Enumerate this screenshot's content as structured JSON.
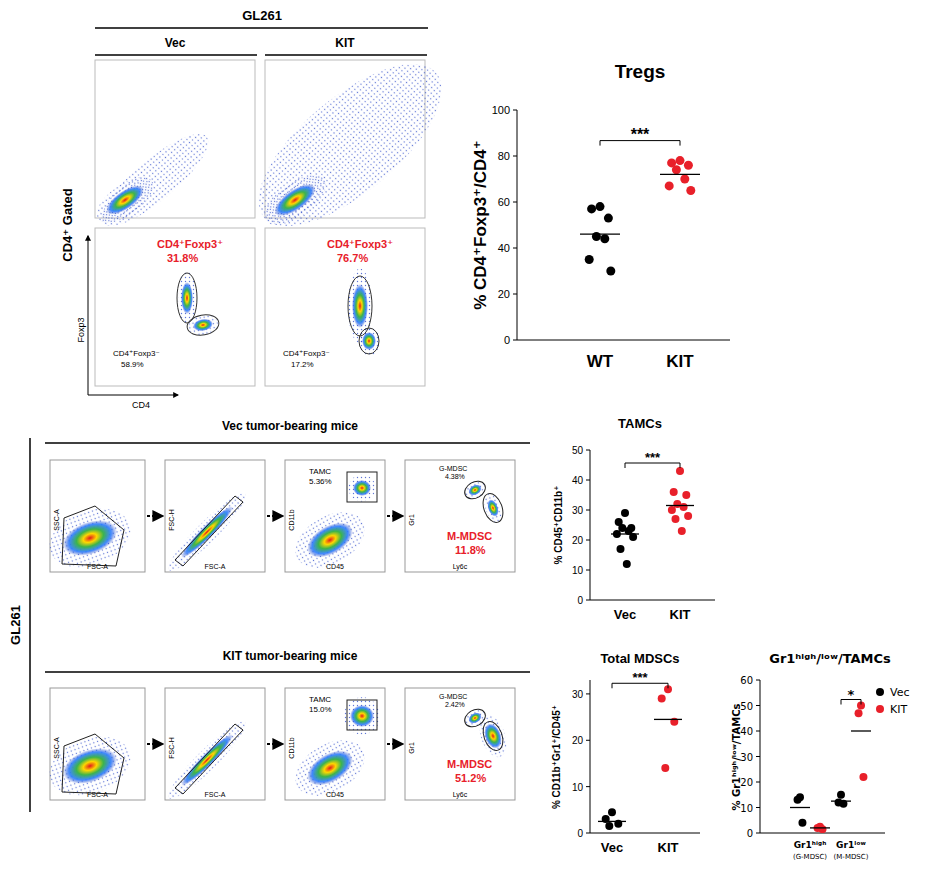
{
  "treg_flow": {
    "title": "GL261",
    "columns": [
      "Vec",
      "KIT"
    ],
    "gate_label": "CD4⁺ Gated",
    "x_label": "CD4",
    "y_label": "Foxp3",
    "gates": [
      [
        {
          "name": "CD4⁺Foxp3⁺",
          "value": "31.8%"
        },
        {
          "name": "CD4⁺Foxp3⁻",
          "value": "58.9%"
        }
      ],
      [
        {
          "name": "CD4⁺Foxp3⁺",
          "value": "76.7%"
        },
        {
          "name": "CD4⁺Foxp3⁻",
          "value": "17.2%"
        }
      ]
    ]
  },
  "myeloid_flow": {
    "title": "GL261",
    "rows": [
      {
        "title": "Vec tumor-bearing  mice",
        "tamc": "5.36%",
        "g_mdsc": "4.38%",
        "m_mdsc": "11.8%"
      },
      {
        "title": "KIT tumor-bearing  mice",
        "tamc": "15.0%",
        "g_mdsc": "2.42%",
        "m_mdsc": "51.2%"
      }
    ],
    "gate_names": {
      "tamc": "TAMC",
      "g_mdsc": "G-MDSC",
      "m_mdsc": "M-MDSC"
    },
    "axes": [
      [
        "FSC-A",
        "SSC-A"
      ],
      [
        "FSC-A",
        "FSC-H"
      ],
      [
        "CD45",
        "CD11b"
      ],
      [
        "Ly6c",
        "Gr1"
      ]
    ]
  },
  "chart_data": [
    {
      "type": "strip",
      "title": "Tregs",
      "y_label": "% CD4⁺Foxp3⁺/CD4⁺",
      "categories": [
        "WT",
        "KIT"
      ],
      "values": [
        [
          58,
          57,
          53,
          45,
          44,
          35,
          30
        ],
        [
          78,
          77,
          76,
          74,
          70,
          67,
          65
        ]
      ],
      "means": [
        46,
        72
      ],
      "colors": [
        "#000000",
        "#e8202a"
      ],
      "ylim": [
        0,
        100
      ],
      "yticks": [
        0,
        20,
        40,
        60,
        80,
        100
      ],
      "annotations": [
        {
          "text": "***"
        }
      ]
    },
    {
      "type": "strip",
      "title": "TAMCs",
      "y_label": "% CD45⁺CD11b⁺",
      "categories": [
        "Vec",
        "KIT"
      ],
      "values": [
        [
          29,
          26,
          24,
          24,
          23,
          22,
          21,
          17,
          12
        ],
        [
          43,
          36,
          35,
          32,
          31,
          30,
          28,
          27,
          23
        ]
      ],
      "means": [
        22,
        31.5
      ],
      "colors": [
        "#000000",
        "#e8202a"
      ],
      "ylim": [
        0,
        50
      ],
      "yticks": [
        0,
        10,
        20,
        30,
        40,
        50
      ],
      "annotations": [
        {
          "text": "***"
        }
      ]
    },
    {
      "type": "strip",
      "title": "Total MDSCs",
      "y_label": "% CD11b⁺Gr1⁺/CD45⁺",
      "categories": [
        "Vec",
        "KIT"
      ],
      "values": [
        [
          4.5,
          3,
          2,
          1.5
        ],
        [
          31,
          29,
          24,
          14
        ]
      ],
      "means": [
        2.5,
        24.5
      ],
      "colors": [
        "#000000",
        "#e8202a"
      ],
      "ylim": [
        0,
        33
      ],
      "yticks": [
        0,
        10,
        20,
        30
      ],
      "annotations": [
        {
          "text": "***"
        }
      ]
    },
    {
      "type": "strip",
      "title": "Gr1ʰⁱᵍʰ/ˡᵒʷ/TAMCs",
      "y_label": "% Gr1ʰⁱᵍʰ/ˡᵒʷ/TAMCs",
      "categories": [
        "Gr1ʰⁱᵍʰ",
        "Gr1ˡᵒʷ"
      ],
      "category_notes": [
        "(G-MDSC)",
        "(M-MDSC)"
      ],
      "series": [
        {
          "name": "Vec",
          "color": "#000000",
          "values": [
            [
              14,
              13,
              4
            ],
            [
              15,
              12,
              11.5
            ]
          ],
          "means": [
            10,
            12.5
          ]
        },
        {
          "name": "KIT",
          "color": "#e8202a",
          "values": [
            [
              2.5,
              2,
              1.5
            ],
            [
              50,
              47,
              22
            ]
          ],
          "means": [
            2,
            40
          ]
        }
      ],
      "legend": "top-right",
      "ylim": [
        0,
        60
      ],
      "yticks": [
        0,
        10,
        20,
        30,
        40,
        50,
        60
      ],
      "annotations": [
        {
          "text": "*",
          "category": 1
        }
      ]
    }
  ]
}
